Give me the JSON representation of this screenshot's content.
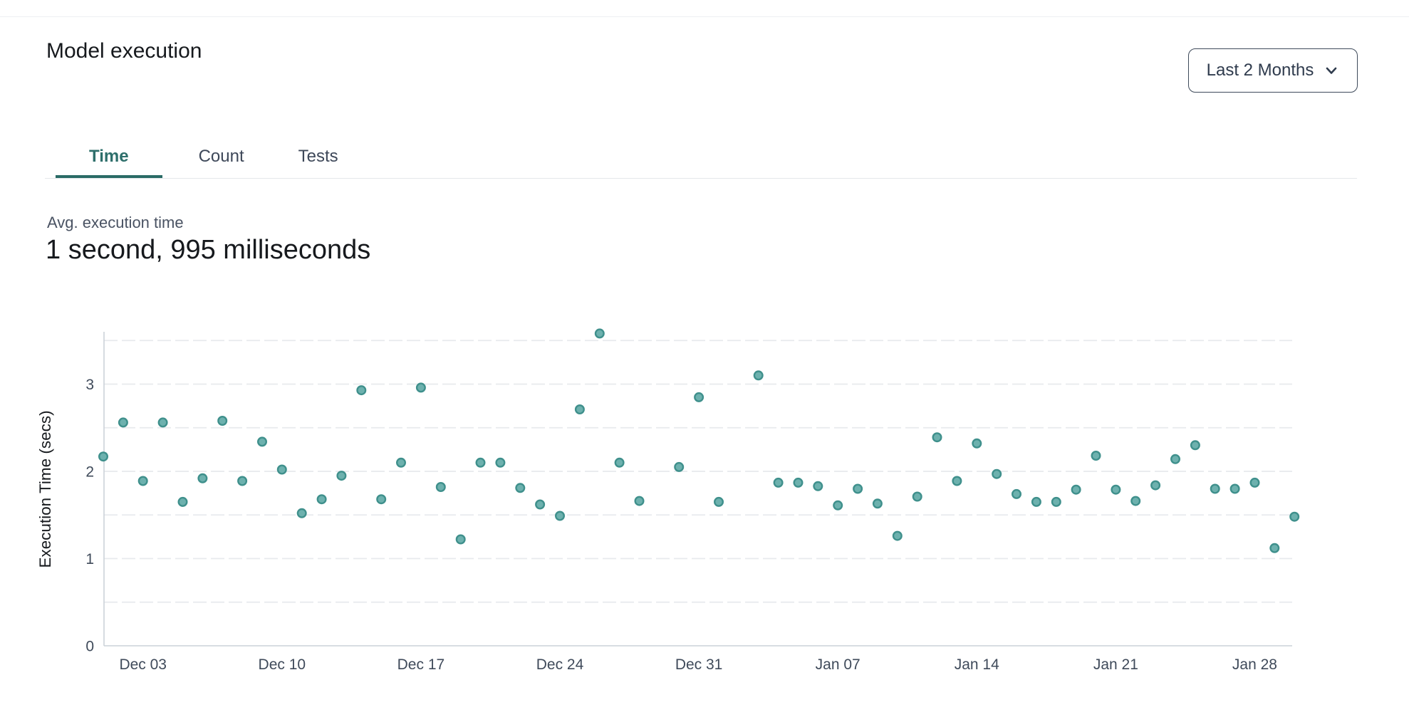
{
  "theme": {
    "accent_teal": "#2e6f6b",
    "tab_underline": "#2a6b66",
    "point_fill": "#6db1ae",
    "point_stroke": "#3f908c",
    "grid_color": "#e8eaed",
    "axis_color": "#ccd2d9",
    "tick_color": "#3f4a5a",
    "border_color": "#e4e7ea",
    "text_dark": "#16191d",
    "text_slate": "#4a5363"
  },
  "header": {
    "title": "Model execution",
    "range_selector": {
      "label": "Last 2 Months",
      "icon": "chevron-down-icon"
    }
  },
  "tabs": [
    {
      "label": "Time",
      "active": true
    },
    {
      "label": "Count",
      "active": false
    },
    {
      "label": "Tests",
      "active": false
    }
  ],
  "summary": {
    "label": "Avg. execution time",
    "value": "1 second, 995 milliseconds"
  },
  "chart_data": {
    "type": "scatter",
    "title": "",
    "xlabel": "",
    "ylabel": "Execution Time (secs)",
    "ylim": [
      0,
      3.7
    ],
    "y_ticks": [
      0,
      1,
      2,
      3
    ],
    "grid": "horizontal dashed lines every 0.5 secs",
    "legend": "none",
    "x_ticks": [
      {
        "label": "Dec 03",
        "day": 2
      },
      {
        "label": "Dec 10",
        "day": 9
      },
      {
        "label": "Dec 17",
        "day": 16
      },
      {
        "label": "Dec 24",
        "day": 23
      },
      {
        "label": "Dec 31",
        "day": 30
      },
      {
        "label": "Jan 07",
        "day": 37
      },
      {
        "label": "Jan 14",
        "day": 44
      },
      {
        "label": "Jan 21",
        "day": 51
      },
      {
        "label": "Jan 28",
        "day": 58
      }
    ],
    "points": [
      {
        "date": "Dec 01",
        "day": 0,
        "value": 2.17
      },
      {
        "date": "Dec 02",
        "day": 1,
        "value": 2.56
      },
      {
        "date": "Dec 03",
        "day": 2,
        "value": 1.89
      },
      {
        "date": "Dec 04",
        "day": 3,
        "value": 2.56
      },
      {
        "date": "Dec 05",
        "day": 4,
        "value": 1.65
      },
      {
        "date": "Dec 06",
        "day": 5,
        "value": 1.92
      },
      {
        "date": "Dec 07",
        "day": 6,
        "value": 2.58
      },
      {
        "date": "Dec 08",
        "day": 7,
        "value": 1.89
      },
      {
        "date": "Dec 09",
        "day": 8,
        "value": 2.34
      },
      {
        "date": "Dec 10",
        "day": 9,
        "value": 2.02
      },
      {
        "date": "Dec 11",
        "day": 10,
        "value": 1.52
      },
      {
        "date": "Dec 12",
        "day": 11,
        "value": 1.68
      },
      {
        "date": "Dec 13",
        "day": 12,
        "value": 1.95
      },
      {
        "date": "Dec 14",
        "day": 13,
        "value": 2.93
      },
      {
        "date": "Dec 15",
        "day": 14,
        "value": 1.68
      },
      {
        "date": "Dec 16",
        "day": 15,
        "value": 2.1
      },
      {
        "date": "Dec 17",
        "day": 16,
        "value": 2.96
      },
      {
        "date": "Dec 18",
        "day": 17,
        "value": 1.82
      },
      {
        "date": "Dec 19",
        "day": 18,
        "value": 1.22
      },
      {
        "date": "Dec 20",
        "day": 19,
        "value": 2.1
      },
      {
        "date": "Dec 21",
        "day": 20,
        "value": 2.1
      },
      {
        "date": "Dec 22",
        "day": 21,
        "value": 1.81
      },
      {
        "date": "Dec 23",
        "day": 22,
        "value": 1.62
      },
      {
        "date": "Dec 24",
        "day": 23,
        "value": 1.49
      },
      {
        "date": "Dec 25",
        "day": 24,
        "value": 2.71
      },
      {
        "date": "Dec 26",
        "day": 25,
        "value": 3.58
      },
      {
        "date": "Dec 27",
        "day": 26,
        "value": 2.1
      },
      {
        "date": "Dec 28",
        "day": 27,
        "value": 1.66
      },
      {
        "date": "Dec 30",
        "day": 29,
        "value": 2.05
      },
      {
        "date": "Dec 31",
        "day": 30,
        "value": 2.85
      },
      {
        "date": "Jan 01",
        "day": 31,
        "value": 1.65
      },
      {
        "date": "Jan 03",
        "day": 33,
        "value": 3.1
      },
      {
        "date": "Jan 04",
        "day": 34,
        "value": 1.87
      },
      {
        "date": "Jan 05",
        "day": 35,
        "value": 1.87
      },
      {
        "date": "Jan 06",
        "day": 36,
        "value": 1.83
      },
      {
        "date": "Jan 07",
        "day": 37,
        "value": 1.61
      },
      {
        "date": "Jan 08",
        "day": 38,
        "value": 1.8
      },
      {
        "date": "Jan 09",
        "day": 39,
        "value": 1.63
      },
      {
        "date": "Jan 10",
        "day": 40,
        "value": 1.26
      },
      {
        "date": "Jan 11",
        "day": 41,
        "value": 1.71
      },
      {
        "date": "Jan 12",
        "day": 42,
        "value": 2.39
      },
      {
        "date": "Jan 13",
        "day": 43,
        "value": 1.89
      },
      {
        "date": "Jan 14",
        "day": 44,
        "value": 2.32
      },
      {
        "date": "Jan 15",
        "day": 45,
        "value": 1.97
      },
      {
        "date": "Jan 16",
        "day": 46,
        "value": 1.74
      },
      {
        "date": "Jan 17",
        "day": 47,
        "value": 1.65
      },
      {
        "date": "Jan 18",
        "day": 48,
        "value": 1.65
      },
      {
        "date": "Jan 19",
        "day": 49,
        "value": 1.79
      },
      {
        "date": "Jan 20",
        "day": 50,
        "value": 2.18
      },
      {
        "date": "Jan 21",
        "day": 51,
        "value": 1.79
      },
      {
        "date": "Jan 22",
        "day": 52,
        "value": 1.66
      },
      {
        "date": "Jan 23",
        "day": 53,
        "value": 1.84
      },
      {
        "date": "Jan 24",
        "day": 54,
        "value": 2.14
      },
      {
        "date": "Jan 25",
        "day": 55,
        "value": 2.3
      },
      {
        "date": "Jan 26",
        "day": 56,
        "value": 1.8
      },
      {
        "date": "Jan 27",
        "day": 57,
        "value": 1.8
      },
      {
        "date": "Jan 28",
        "day": 58,
        "value": 1.87
      },
      {
        "date": "Jan 29",
        "day": 59,
        "value": 1.12
      },
      {
        "date": "Jan 30",
        "day": 60,
        "value": 1.48
      }
    ]
  }
}
